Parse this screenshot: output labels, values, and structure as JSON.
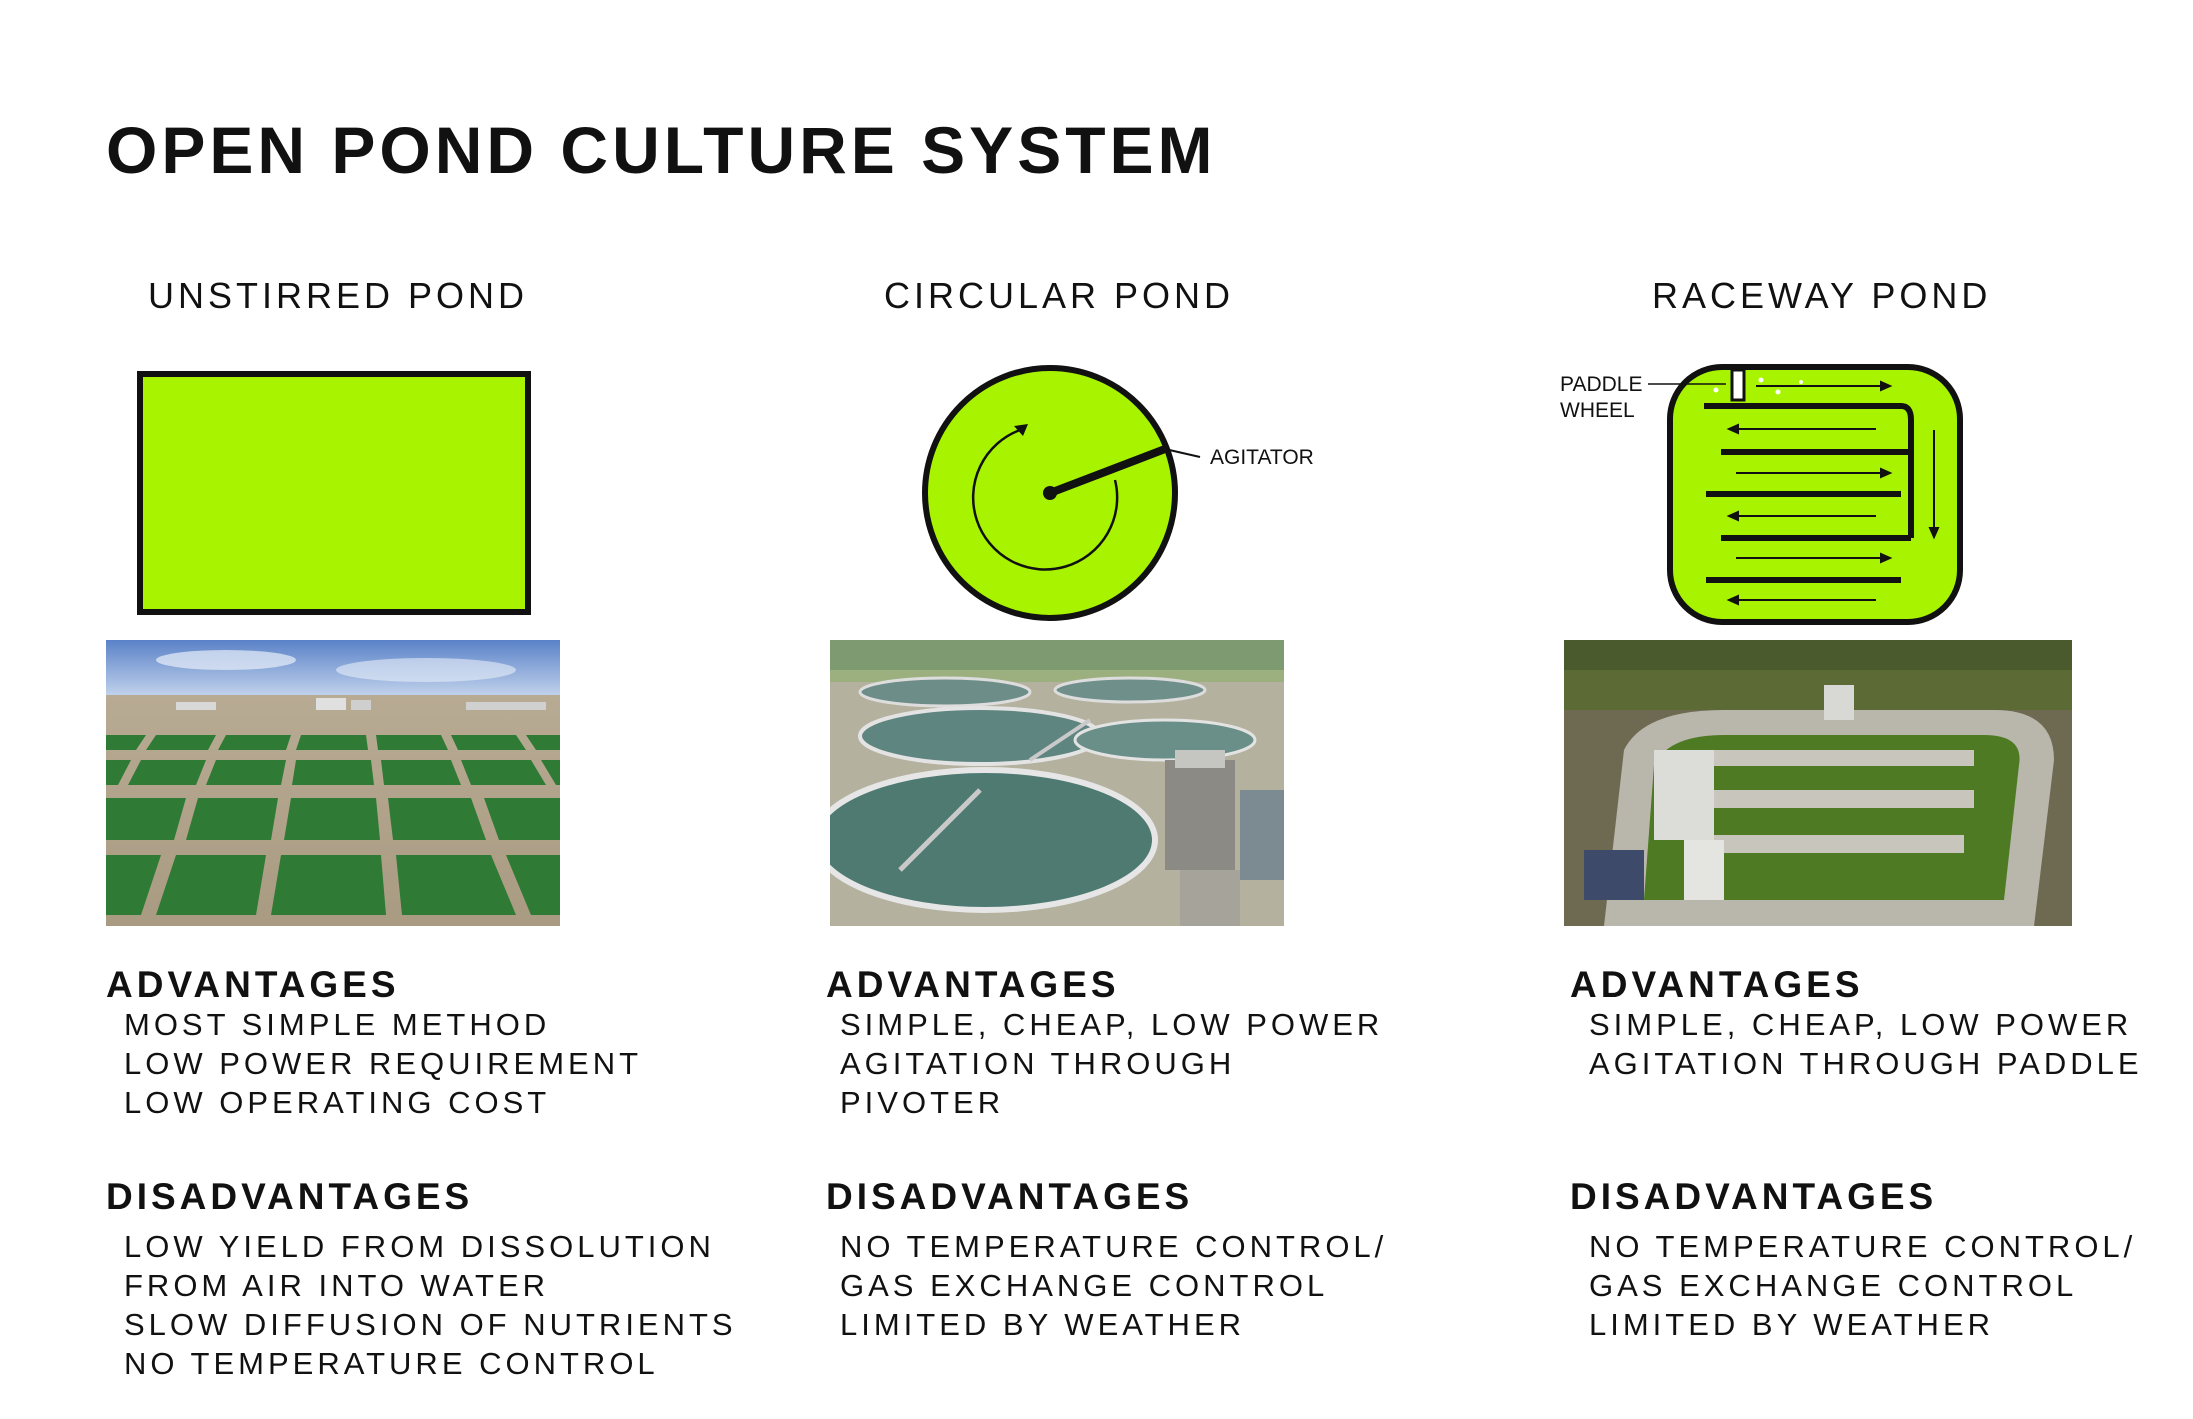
{
  "title": "OPEN POND CULTURE SYSTEM",
  "colors": {
    "algae_green": "#a8f400",
    "outline": "#111111"
  },
  "columns": [
    {
      "heading": "UNSTIRRED POND",
      "photo": "aerial-grid-ponds-photo",
      "advantages_label": "ADVANTAGES",
      "advantages": [
        "MOST SIMPLE METHOD",
        "LOW POWER REQUIREMENT",
        "LOW OPERATING COST"
      ],
      "disadvantages_label": "DISADVANTAGES",
      "disadvantages": [
        "LOW YIELD FROM DISSOLUTION",
        "FROM AIR INTO WATER",
        "SLOW DIFFUSION OF NUTRIENTS",
        "NO TEMPERATURE CONTROL"
      ]
    },
    {
      "heading": "CIRCULAR POND",
      "diagram_label": "AGITATOR",
      "photo": "circular-ponds-photo",
      "advantages_label": "ADVANTAGES",
      "advantages": [
        "SIMPLE, CHEAP, LOW POWER",
        "AGITATION THROUGH",
        "PIVOTER"
      ],
      "disadvantages_label": "DISADVANTAGES",
      "disadvantages": [
        "NO TEMPERATURE CONTROL/",
        "GAS EXCHANGE CONTROL",
        "LIMITED BY WEATHER"
      ]
    },
    {
      "heading": "RACEWAY POND",
      "diagram_label_line1": "PADDLE",
      "diagram_label_line2": "WHEEL",
      "photo": "raceway-pond-photo",
      "advantages_label": "ADVANTAGES",
      "advantages": [
        "SIMPLE, CHEAP, LOW POWER",
        "AGITATION THROUGH PADDLE"
      ],
      "disadvantages_label": "DISADVANTAGES",
      "disadvantages": [
        "NO TEMPERATURE CONTROL/",
        "GAS EXCHANGE CONTROL",
        "LIMITED BY WEATHER"
      ]
    }
  ]
}
